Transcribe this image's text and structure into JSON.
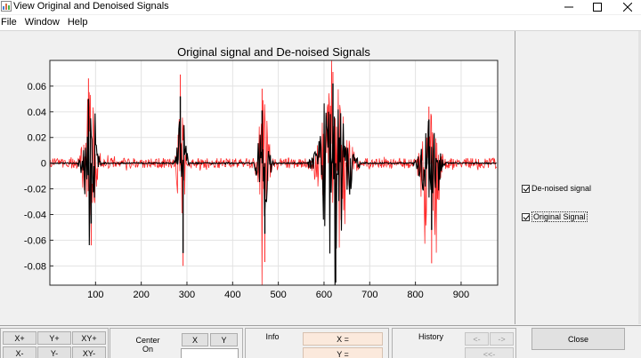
{
  "window": {
    "title": "View Original and Denoised Signals"
  },
  "menu": [
    {
      "label": "File"
    },
    {
      "label": "Window"
    },
    {
      "label": "Help"
    }
  ],
  "chart_data": {
    "type": "line",
    "title": "Original signal and De-noised Signals",
    "xlim": [
      0,
      980
    ],
    "ylim": [
      -0.095,
      0.08
    ],
    "xticks": [
      100,
      200,
      300,
      400,
      500,
      600,
      700,
      800,
      900
    ],
    "yticks": [
      0.06,
      0.04,
      0.02,
      0,
      -0.02,
      -0.04,
      -0.06,
      -0.08
    ],
    "ytick_labels": [
      "0.06",
      "0.04",
      "0.02",
      "0",
      "-0.02",
      "-0.04",
      "-0.06",
      "-0.08"
    ],
    "grid": true,
    "legend": "none",
    "colors": {
      "original": "#ff2a2a",
      "denoised": "#000000"
    },
    "series": [
      {
        "name": "Original Signal",
        "noise_amplitude": 0.004,
        "bursts": [
          {
            "x_start": 60,
            "x_end": 115,
            "y_max": 0.066,
            "y_min": -0.064
          },
          {
            "x_start": 272,
            "x_end": 305,
            "y_max": 0.069,
            "y_min": -0.08
          },
          {
            "x_start": 445,
            "x_end": 490,
            "y_max": 0.058,
            "y_min": -0.077
          },
          {
            "x_start": 565,
            "x_end": 680,
            "y_max": 0.071,
            "y_min": -0.092
          },
          {
            "x_start": 795,
            "x_end": 870,
            "y_max": 0.044,
            "y_min": -0.078
          }
        ]
      },
      {
        "name": "De-noised signal",
        "noise_amplitude": 0.0005,
        "bursts": [
          {
            "x_start": 60,
            "x_end": 115,
            "y_max": 0.05,
            "y_min": -0.047
          },
          {
            "x_start": 272,
            "x_end": 305,
            "y_max": 0.052,
            "y_min": -0.07
          },
          {
            "x_start": 445,
            "x_end": 490,
            "y_max": 0.041,
            "y_min": -0.055
          },
          {
            "x_start": 565,
            "x_end": 680,
            "y_max": 0.062,
            "y_min": -0.093
          },
          {
            "x_start": 795,
            "x_end": 870,
            "y_max": 0.034,
            "y_min": -0.052
          }
        ]
      }
    ]
  },
  "checkboxes": [
    {
      "label": "De-noised signal",
      "checked": true
    },
    {
      "label": "Original Signal",
      "checked": true
    }
  ],
  "zoom": {
    "x_plus": "X+",
    "y_plus": "Y+",
    "xy_plus": "XY+",
    "x_minus": "X-",
    "y_minus": "Y-",
    "xy_minus": "XY-"
  },
  "center": {
    "label_line1": "Center",
    "label_line2": "On",
    "x": "X",
    "y": "Y"
  },
  "info": {
    "label": "Info",
    "x_field": "X =",
    "y_field": "Y ="
  },
  "history": {
    "label": "History",
    "back": "<-",
    "forward": "->",
    "back_all": "<<-"
  },
  "close": {
    "label": "Close"
  }
}
